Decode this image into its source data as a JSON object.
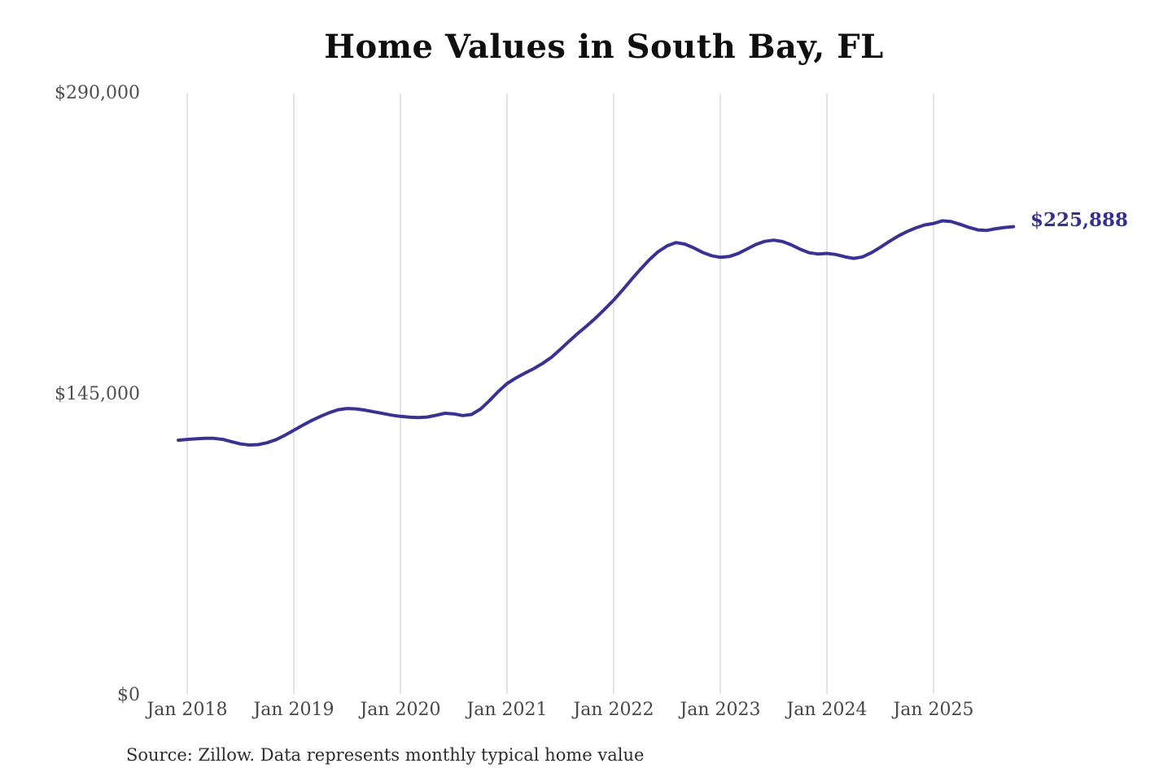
{
  "page": {
    "source_note": "Source: Zillow. Data represents monthly typical home value"
  },
  "chart_data": {
    "type": "line",
    "title": "Home Values in South Bay, FL",
    "xlabel": "",
    "ylabel": "",
    "unit": "USD",
    "ylim": [
      0,
      290000
    ],
    "grid": "vertical-only",
    "legend": "none",
    "line_color": "#3a3292",
    "grid_color": "#c9c9c9",
    "axis_text_color": "#4f4f4f",
    "annotation": {
      "label": "$225,888",
      "value": 225888,
      "color": "#37308e"
    },
    "y_ticks": [
      {
        "label": "$0",
        "value": 0
      },
      {
        "label": "$145,000",
        "value": 145000
      },
      {
        "label": "$290,000",
        "value": 290000
      }
    ],
    "x_ticks": [
      {
        "label": "Jan 2018",
        "month_offset": 0
      },
      {
        "label": "Jan 2019",
        "month_offset": 12
      },
      {
        "label": "Jan 2020",
        "month_offset": 24
      },
      {
        "label": "Jan 2021",
        "month_offset": 36
      },
      {
        "label": "Jan 2022",
        "month_offset": 48
      },
      {
        "label": "Jan 2023",
        "month_offset": 60
      },
      {
        "label": "Jan 2024",
        "month_offset": 72
      },
      {
        "label": "Jan 2025",
        "month_offset": 84
      }
    ],
    "series_start_month": "Dec 2017",
    "series_end_month": "Oct 2025",
    "first_point_month_offset": -1,
    "values": [
      123000,
      123400,
      123700,
      123900,
      123900,
      123400,
      122300,
      121200,
      120700,
      120900,
      121800,
      123300,
      125400,
      127800,
      130200,
      132500,
      134500,
      136300,
      137700,
      138300,
      138100,
      137500,
      136700,
      135900,
      135100,
      134500,
      134100,
      133900,
      134200,
      135000,
      136000,
      135700,
      134900,
      135400,
      138000,
      142000,
      146400,
      150300,
      153000,
      155300,
      157500,
      160000,
      163000,
      166800,
      170800,
      174600,
      178200,
      182000,
      186200,
      190500,
      195300,
      200400,
      205300,
      209900,
      213800,
      216600,
      218200,
      217500,
      215700,
      213500,
      211900,
      211100,
      211500,
      212900,
      215100,
      217300,
      218800,
      219400,
      218700,
      217100,
      215000,
      213300,
      212700,
      213000,
      212500,
      211400,
      210600,
      211300,
      213300,
      215900,
      218700,
      221300,
      223500,
      225300,
      226700,
      227400,
      228700,
      228300,
      227000,
      225500,
      224300,
      224100,
      224900,
      225500,
      225888
    ]
  }
}
